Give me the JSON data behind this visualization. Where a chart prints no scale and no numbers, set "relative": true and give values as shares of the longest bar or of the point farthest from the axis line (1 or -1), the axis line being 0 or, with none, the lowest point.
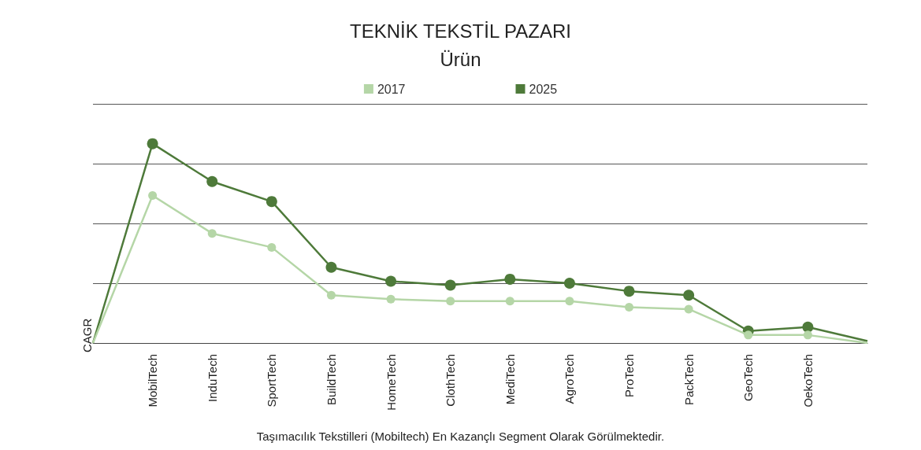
{
  "chart_data": {
    "type": "line",
    "title": "TEKNİK TEKSTİL PAZARI",
    "subtitle": "Ürün",
    "ylabel": "CAGR",
    "relative": true,
    "grid": "y",
    "legend": "top",
    "marker": "circle",
    "line_style": "solid",
    "categories": [
      null,
      "MobilTech",
      "InduTech",
      "SportTech",
      "BuildTech",
      "HomeTech",
      "ClothTech",
      "MediTech",
      "AgroTech",
      "ProTech",
      "PackTech",
      "GeoTech",
      "OekoTech",
      null
    ],
    "series": [
      {
        "name": "2017",
        "color": "#b5d6a7",
        "values": [
          0,
          0.74,
          0.55,
          0.48,
          0.24,
          0.22,
          0.21,
          0.21,
          0.21,
          0.18,
          0.17,
          0.04,
          0.04,
          0
        ]
      },
      {
        "name": "2025",
        "color": "#4e7a3a",
        "values": [
          0,
          1,
          0.81,
          0.71,
          0.38,
          0.31,
          0.29,
          0.32,
          0.3,
          0.26,
          0.24,
          0.06,
          0.08,
          0.01
        ]
      }
    ],
    "annotations": [
      "Taşımacılık Tekstilleri (Mobiltech) En Kazançlı Segment Olarak Görülmektedir."
    ]
  }
}
